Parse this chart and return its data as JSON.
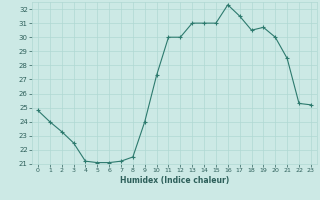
{
  "x": [
    0,
    1,
    2,
    3,
    4,
    5,
    6,
    7,
    8,
    9,
    10,
    11,
    12,
    13,
    14,
    15,
    16,
    17,
    18,
    19,
    20,
    21,
    22,
    23
  ],
  "y": [
    24.8,
    24.0,
    23.3,
    22.5,
    21.2,
    21.1,
    21.1,
    21.2,
    21.5,
    24.0,
    27.3,
    30.0,
    30.0,
    31.0,
    31.0,
    31.0,
    32.3,
    31.5,
    30.5,
    30.7,
    30.0,
    28.5,
    25.3,
    25.2
  ],
  "xlabel": "Humidex (Indice chaleur)",
  "ylim": [
    21,
    32.5
  ],
  "xlim": [
    -0.5,
    23.5
  ],
  "yticks": [
    21,
    22,
    23,
    24,
    25,
    26,
    27,
    28,
    29,
    30,
    31,
    32
  ],
  "xticks": [
    0,
    1,
    2,
    3,
    4,
    5,
    6,
    7,
    8,
    9,
    10,
    11,
    12,
    13,
    14,
    15,
    16,
    17,
    18,
    19,
    20,
    21,
    22,
    23
  ],
  "line_color": "#2d7a6e",
  "marker_color": "#2d7a6e",
  "bg_color": "#cce9e5",
  "grid_color": "#b0d8d3",
  "text_color": "#2d5f5a"
}
